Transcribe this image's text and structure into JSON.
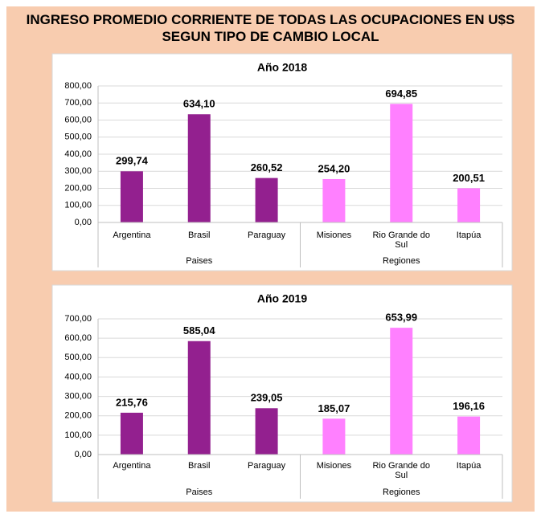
{
  "title": "INGRESO PROMEDIO CORRIENTE DE TODAS LAS OCUPACIONES EN U$S SEGUN TIPO DE CAMBIO LOCAL",
  "chart_data": [
    {
      "type": "bar",
      "title": "Año 2018",
      "ylim": [
        0,
        800
      ],
      "yticks": [
        {
          "value": 0,
          "label": "0,00"
        },
        {
          "value": 100,
          "label": "100,00"
        },
        {
          "value": 200,
          "label": "200,00"
        },
        {
          "value": 300,
          "label": "300,00"
        },
        {
          "value": 400,
          "label": "400,00"
        },
        {
          "value": 500,
          "label": "500,00"
        },
        {
          "value": 600,
          "label": "600,00"
        },
        {
          "value": 700,
          "label": "700,00"
        },
        {
          "value": 800,
          "label": "800,00"
        }
      ],
      "grid": true,
      "groups": [
        {
          "name": "Paises",
          "color": "#93208f",
          "categories": [
            "Argentina",
            "Brasil",
            "Paraguay"
          ],
          "values": [
            299.74,
            634.1,
            260.52
          ],
          "value_labels": [
            "299,74",
            "634,10",
            "260,52"
          ]
        },
        {
          "name": "Regiones",
          "color": "#ff80ff",
          "categories": [
            "Misiones",
            "Rio Grande do Sul",
            "Itapúa"
          ],
          "values": [
            254.2,
            694.85,
            200.51
          ],
          "value_labels": [
            "254,20",
            "694,85",
            "200,51"
          ]
        }
      ]
    },
    {
      "type": "bar",
      "title": "Año 2019",
      "ylim": [
        0,
        700
      ],
      "yticks": [
        {
          "value": 0,
          "label": "0,00"
        },
        {
          "value": 100,
          "label": "100,00"
        },
        {
          "value": 200,
          "label": "200,00"
        },
        {
          "value": 300,
          "label": "300,00"
        },
        {
          "value": 400,
          "label": "400,00"
        },
        {
          "value": 500,
          "label": "500,00"
        },
        {
          "value": 600,
          "label": "600,00"
        },
        {
          "value": 700,
          "label": "700,00"
        }
      ],
      "grid": true,
      "groups": [
        {
          "name": "Paises",
          "color": "#93208f",
          "categories": [
            "Argentina",
            "Brasil",
            "Paraguay"
          ],
          "values": [
            215.76,
            585.04,
            239.05
          ],
          "value_labels": [
            "215,76",
            "585,04",
            "239,05"
          ]
        },
        {
          "name": "Regiones",
          "color": "#ff80ff",
          "categories": [
            "Misiones",
            "Rio Grande do Sul",
            "Itapúa"
          ],
          "values": [
            185.07,
            653.99,
            196.16
          ],
          "value_labels": [
            "185,07",
            "653,99",
            "196,16"
          ]
        }
      ]
    }
  ]
}
